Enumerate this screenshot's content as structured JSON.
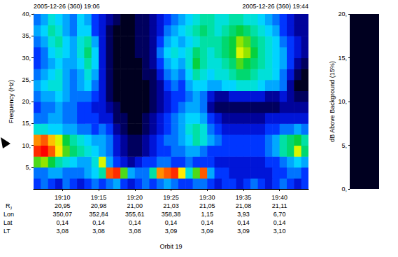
{
  "chart_data": {
    "type": "heatmap",
    "header_left": "2005-12-26 (360) 19:06",
    "header_right": "2005-12-26 (360) 19:44",
    "y_label": "Frequency (Hz)",
    "x_label": "Orbit 19",
    "xlim": [
      1146,
      1184
    ],
    "xticks": [
      {
        "value": 1150,
        "label": "19:10"
      },
      {
        "value": 1155,
        "label": "19:15"
      },
      {
        "value": 1160,
        "label": "19:20"
      },
      {
        "value": 1165,
        "label": "19:25"
      },
      {
        "value": 1170,
        "label": "19:30"
      },
      {
        "value": 1175,
        "label": "19:35"
      },
      {
        "value": 1180,
        "label": "19:40"
      }
    ],
    "ylim": [
      0,
      40
    ],
    "yticks": [
      {
        "value": 5,
        "label": "5,"
      },
      {
        "value": 10,
        "label": "10,"
      },
      {
        "value": 15,
        "label": "15,"
      },
      {
        "value": 20,
        "label": "20,"
      },
      {
        "value": 25,
        "label": "25,"
      },
      {
        "value": 30,
        "label": "30,"
      },
      {
        "value": 35,
        "label": "35,"
      },
      {
        "value": 40,
        "label": "40,"
      }
    ],
    "x_bins": [
      1146,
      1147,
      1148,
      1149,
      1150,
      1151,
      1152,
      1153,
      1154,
      1155,
      1156,
      1157,
      1158,
      1159,
      1160,
      1161,
      1162,
      1163,
      1164,
      1165,
      1166,
      1167,
      1168,
      1169,
      1170,
      1171,
      1172,
      1173,
      1174,
      1175,
      1176,
      1177,
      1178,
      1179,
      1180,
      1181,
      1182,
      1183,
      1184
    ],
    "y_bins": [
      0,
      2.5,
      5,
      7.5,
      10,
      12.5,
      15,
      17.5,
      20,
      22.5,
      25,
      27.5,
      30,
      32.5,
      35,
      37.5,
      40
    ],
    "cells": [
      [
        4,
        5,
        4,
        3,
        5,
        4,
        3,
        4,
        5,
        4,
        5,
        6,
        4,
        3,
        4,
        5,
        4,
        5,
        6,
        5,
        4,
        4,
        5,
        5,
        4,
        3,
        4,
        4,
        3,
        4,
        5,
        4,
        3,
        4,
        5,
        4,
        3,
        4
      ],
      [
        5,
        5,
        6,
        6,
        5,
        5,
        5,
        6,
        7,
        9,
        18,
        19,
        12,
        6,
        5,
        5,
        9,
        17,
        18,
        19,
        15,
        8,
        12,
        18,
        6,
        4,
        4,
        3,
        3,
        3,
        3,
        3,
        3,
        4,
        4,
        5,
        5,
        4
      ],
      [
        12,
        13,
        11,
        9,
        8,
        7,
        6,
        6,
        8,
        14,
        6,
        4,
        3,
        2,
        3,
        4,
        4,
        5,
        5,
        4,
        4,
        5,
        4,
        4,
        4,
        3,
        3,
        3,
        3,
        3,
        3,
        3,
        4,
        4,
        5,
        6,
        7,
        6
      ],
      [
        19,
        20,
        18,
        15,
        12,
        10,
        9,
        8,
        7,
        6,
        5,
        3,
        2,
        1,
        1,
        2,
        3,
        4,
        4,
        5,
        5,
        6,
        6,
        5,
        4,
        4,
        4,
        4,
        4,
        4,
        4,
        4,
        5,
        6,
        9,
        10,
        14,
        10
      ],
      [
        17,
        18,
        16,
        14,
        11,
        9,
        8,
        7,
        6,
        6,
        5,
        3,
        2,
        1,
        1,
        2,
        3,
        4,
        5,
        5,
        6,
        7,
        9,
        8,
        6,
        5,
        4,
        4,
        4,
        4,
        4,
        4,
        5,
        6,
        9,
        10,
        11,
        9
      ],
      [
        8,
        8,
        7,
        7,
        6,
        6,
        5,
        5,
        4,
        5,
        4,
        2,
        1,
        0,
        0,
        1,
        2,
        3,
        4,
        5,
        6,
        8,
        9,
        8,
        5,
        4,
        3,
        3,
        3,
        3,
        3,
        3,
        4,
        4,
        5,
        5,
        6,
        5
      ],
      [
        5,
        5,
        6,
        6,
        5,
        5,
        4,
        4,
        4,
        3,
        3,
        1,
        1,
        0,
        0,
        1,
        2,
        3,
        4,
        5,
        6,
        7,
        7,
        6,
        4,
        3,
        2,
        2,
        2,
        2,
        2,
        2,
        3,
        3,
        3,
        3,
        3,
        3
      ],
      [
        4,
        5,
        5,
        6,
        5,
        5,
        4,
        4,
        3,
        3,
        2,
        1,
        0,
        0,
        0,
        0,
        1,
        2,
        3,
        4,
        5,
        6,
        6,
        5,
        2,
        1,
        1,
        1,
        1,
        1,
        1,
        1,
        1,
        1,
        2,
        2,
        2,
        2
      ],
      [
        5,
        6,
        6,
        7,
        6,
        5,
        5,
        5,
        4,
        3,
        1,
        0,
        0,
        0,
        0,
        0,
        1,
        2,
        3,
        4,
        4,
        5,
        6,
        5,
        3,
        2,
        2,
        3,
        3,
        3,
        3,
        3,
        2,
        2,
        3,
        2,
        1,
        1
      ],
      [
        6,
        7,
        8,
        8,
        6,
        5,
        6,
        7,
        5,
        3,
        1,
        0,
        0,
        0,
        0,
        0,
        1,
        2,
        4,
        5,
        4,
        6,
        7,
        7,
        6,
        6,
        7,
        7,
        8,
        8,
        8,
        7,
        6,
        6,
        5,
        2,
        0,
        0
      ],
      [
        5,
        6,
        7,
        8,
        6,
        5,
        6,
        8,
        6,
        3,
        1,
        0,
        0,
        0,
        0,
        1,
        1,
        3,
        5,
        6,
        5,
        7,
        9,
        8,
        7,
        8,
        8,
        9,
        10,
        10,
        9,
        8,
        8,
        7,
        5,
        3,
        1,
        0
      ],
      [
        4,
        5,
        6,
        7,
        6,
        6,
        7,
        9,
        7,
        3,
        1,
        0,
        0,
        0,
        0,
        1,
        2,
        4,
        6,
        7,
        6,
        8,
        11,
        9,
        8,
        8,
        9,
        10,
        12,
        11,
        10,
        9,
        8,
        7,
        6,
        4,
        2,
        1
      ],
      [
        4,
        5,
        7,
        8,
        7,
        6,
        8,
        10,
        7,
        3,
        1,
        0,
        0,
        0,
        1,
        1,
        2,
        5,
        7,
        8,
        7,
        8,
        10,
        9,
        8,
        9,
        10,
        11,
        14,
        13,
        11,
        9,
        8,
        7,
        6,
        4,
        3,
        2
      ],
      [
        5,
        6,
        8,
        9,
        7,
        6,
        8,
        9,
        6,
        3,
        1,
        0,
        0,
        0,
        1,
        1,
        2,
        4,
        6,
        7,
        6,
        7,
        8,
        9,
        9,
        9,
        10,
        11,
        13,
        12,
        10,
        9,
        8,
        7,
        5,
        4,
        3,
        2
      ],
      [
        6,
        7,
        9,
        8,
        6,
        5,
        7,
        7,
        4,
        3,
        1,
        0,
        0,
        0,
        1,
        1,
        2,
        3,
        5,
        6,
        7,
        8,
        9,
        10,
        9,
        8,
        9,
        10,
        11,
        10,
        9,
        8,
        7,
        6,
        4,
        3,
        2,
        2
      ],
      [
        5,
        6,
        8,
        7,
        6,
        5,
        7,
        6,
        4,
        3,
        2,
        1,
        0,
        0,
        1,
        1,
        2,
        3,
        4,
        5,
        6,
        7,
        8,
        9,
        9,
        8,
        8,
        9,
        9,
        8,
        8,
        7,
        6,
        5,
        4,
        3,
        2,
        2
      ]
    ],
    "colorbar": {
      "label": "dB Above Background (15%)",
      "lim": [
        0,
        20
      ],
      "ticks": [
        {
          "value": 0,
          "label": "0,"
        },
        {
          "value": 5,
          "label": "5,"
        },
        {
          "value": 10,
          "label": "10,"
        },
        {
          "value": 15,
          "label": "15,"
        },
        {
          "value": 20,
          "label": "20,"
        }
      ]
    },
    "ephemeris": {
      "labels": [
        {
          "text": "R",
          "sub": "J"
        },
        "Lon",
        "Lat",
        "LT"
      ],
      "rows": [
        [
          "20,95",
          "20,98",
          "21,00",
          "21,03",
          "21,05",
          "21,08",
          "21,11"
        ],
        [
          "350,07",
          "352,84",
          "355,61",
          "358,38",
          "1,15",
          "3,93",
          "6,70"
        ],
        [
          "0,14",
          "0,14",
          "0,14",
          "0,14",
          "0,14",
          "0,14",
          "0,14"
        ],
        [
          "3,08",
          "3,08",
          "3,08",
          "3,09",
          "3,09",
          "3,09",
          "3,10"
        ]
      ]
    }
  }
}
